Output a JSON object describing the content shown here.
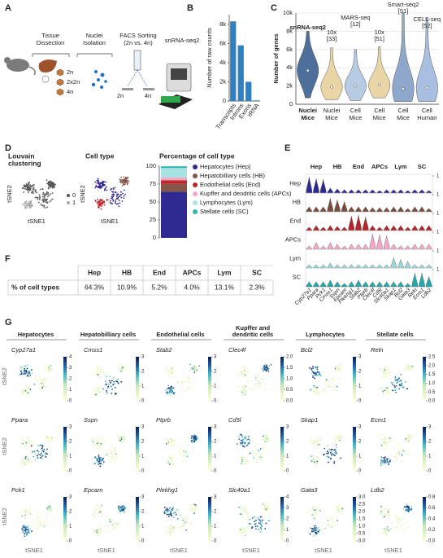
{
  "panel_letters": [
    "A",
    "B",
    "C",
    "D",
    "E",
    "F",
    "G"
  ],
  "A": {
    "steps": [
      [
        "Tissue",
        "Dissection"
      ],
      [
        "Nuclei",
        "Isolation"
      ],
      [
        "FACS Sorting",
        "(2n vs. 4n)"
      ],
      [
        "snRNA-seq2"
      ]
    ],
    "ploidy": [
      "2n",
      "2x2n",
      "4n"
    ],
    "sort_labels": [
      "2n",
      "4n"
    ]
  },
  "D": {
    "louvain_title": [
      "Louvain",
      "clustering"
    ],
    "louvain_legend": [
      "0",
      "1"
    ],
    "celltype_title": "Cell type"
  },
  "F": {
    "header": [
      "Hep",
      "HB",
      "End",
      "APCs",
      "Lym",
      "SC"
    ],
    "row_label": "% of cell types",
    "cells": [
      "64.3%",
      "10.9%",
      "5.2%",
      "4.0%",
      "13.1%",
      "2.3%"
    ]
  },
  "G": {
    "column_titles": [
      [
        "Hepatocytes"
      ],
      [
        "Hepatobilliary cells"
      ],
      [
        "Endothelial cells"
      ],
      [
        "Kupffer and",
        "dendritic cells"
      ],
      [
        "Lymphocytes"
      ],
      [
        "Stellate cells"
      ]
    ],
    "genes": [
      [
        "Cyp27a1",
        "Cmss1",
        "Stab2",
        "Clec4f",
        "Bcl2",
        "Reln"
      ],
      [
        "Ppara",
        "Sspn",
        "Ptprb",
        "Cd5l",
        "Skap1",
        "Ecm1"
      ],
      [
        "Pck1",
        "Epcam",
        "Plekhg1",
        "Slc40a1",
        "Gata3",
        "Ldb2"
      ]
    ],
    "colorbar_ticks": [
      [
        [
          0,
          1,
          2,
          3,
          4
        ],
        [
          0,
          1,
          2,
          3
        ],
        [
          0,
          1,
          2,
          3
        ],
        [
          {
            "value": 0,
            "label": "0.0"
          },
          {
            "value": 0.5,
            "label": "0.5"
          },
          {
            "value": 1,
            "label": "1.0"
          },
          {
            "value": 1.5,
            "label": "1.5"
          },
          {
            "value": 2,
            "label": "2.0"
          }
        ],
        [
          0,
          1,
          2,
          3
        ],
        [
          {
            "value": 0,
            "label": "0.0"
          },
          0.5,
          {
            "value": 1,
            "label": "1.0"
          },
          1.5,
          {
            "value": 2,
            "label": "2.0"
          },
          2.5
        ]
      ],
      [
        [
          0,
          1,
          2,
          3
        ],
        [
          0,
          1,
          2,
          3
        ],
        [
          0,
          1,
          2,
          3
        ],
        [
          0,
          1,
          2,
          3
        ],
        [
          0,
          1,
          2,
          3
        ],
        [
          0,
          1,
          2,
          3
        ]
      ],
      [
        [
          0,
          1,
          2,
          3
        ],
        [
          0,
          1,
          2,
          3
        ],
        [
          0,
          1,
          2,
          3
        ],
        [
          0,
          1,
          2,
          3,
          4
        ],
        [
          {
            "value": 0,
            "label": "0.0"
          },
          0.5,
          {
            "value": 1,
            "label": "1.0"
          },
          1.5,
          {
            "value": 2,
            "label": "2.0"
          },
          2.5,
          {
            "value": 3,
            "label": "3.0"
          }
        ],
        [
          {
            "value": 0,
            "label": "0.0"
          },
          0.2,
          0.4,
          0.6,
          0.8
        ]
      ]
    ]
  },
  "axis_labels": {
    "x": "tSNE1",
    "y": "tSNE2"
  },
  "chart_data": [
    {
      "type": "bar",
      "ylabel": "Number of raw counts",
      "categories": [
        "Transcripts",
        "Introns",
        "Exons",
        "rRNA"
      ],
      "values": [
        8300,
        5800,
        2000,
        60
      ],
      "color": "#2f7fc1",
      "ylim": [
        0,
        9000
      ],
      "yticks": [
        0,
        {
          "value": 2000,
          "label": "2k"
        },
        {
          "value": 4000,
          "label": "4k"
        },
        {
          "value": 6000,
          "label": "6k"
        },
        {
          "value": 8000,
          "label": "8k"
        }
      ]
    },
    {
      "type": "violin",
      "ylabel": "Number of genes",
      "categories": [
        [
          "Nuclei",
          "Mice"
        ],
        [
          "Nuclei",
          "Mice"
        ],
        [
          "Cell",
          "Mice"
        ],
        [
          "Cell",
          "Mice"
        ],
        [
          "Cell",
          "Mice"
        ],
        [
          "Cell",
          "Human"
        ]
      ],
      "methods": [
        [
          "snRNA-seq2"
        ],
        [
          "10x",
          "[33]"
        ],
        [
          "MARS-seq",
          "[12]"
        ],
        [
          "10x",
          "[51]"
        ],
        [
          "Smart-seq2",
          "[51]"
        ],
        [
          "CELL-seq",
          "[52]"
        ]
      ],
      "colors": [
        "#4d6f99",
        "#ead5a6",
        "#b7cbe3",
        "#ead5a6",
        "#8ea8cc",
        "#a9bfe2"
      ],
      "values": [
        3700,
        1900,
        2000,
        2100,
        1700,
        1800
      ],
      "min": [
        700,
        500,
        400,
        700,
        300,
        300
      ],
      "max": [
        8000,
        6200,
        6000,
        6300,
        10000,
        9500
      ],
      "ylim": [
        0,
        10000
      ],
      "grid": true,
      "yticks": [
        0,
        {
          "value": 2000,
          "label": "2k"
        },
        {
          "value": 4000,
          "label": "4k"
        },
        {
          "value": 6000,
          "label": "6k"
        },
        {
          "value": 8000,
          "label": "8k"
        },
        {
          "value": 10000,
          "label": "10k"
        }
      ]
    },
    {
      "type": "stacked_bar",
      "title": "Percentage of cell type",
      "ylim": [
        0,
        100
      ],
      "yticks": [
        0,
        25,
        50,
        75,
        100
      ],
      "series": [
        {
          "name": "Hepatocytes (Hep)",
          "color": "#2e2a92",
          "values": [
            64.3
          ]
        },
        {
          "name": "Hepatobilliary cells (HB)",
          "color": "#85564a",
          "values": [
            10.9
          ]
        },
        {
          "name": "Endothelial cells (End)",
          "color": "#c0272d",
          "values": [
            5.2
          ]
        },
        {
          "name": "Kupffer and dendritic cells (APCs)",
          "color": "#f2a9c8",
          "values": [
            4.0
          ]
        },
        {
          "name": "Lymphocytes (Lym)",
          "color": "#a8e3e3",
          "values": [
            13.1
          ]
        },
        {
          "name": "Stellate cells (SC)",
          "color": "#2cb5b5",
          "values": [
            2.3
          ]
        }
      ]
    },
    {
      "type": "stacked_violin",
      "groups": [
        "Hep",
        "HB",
        "End",
        "APCs",
        "Lym",
        "SC"
      ],
      "rows": [
        "Hep",
        "HB",
        "End",
        "APCs",
        "Lym",
        "SC"
      ],
      "row_colors": [
        "#2e2a92",
        "#7a4e3e",
        "#b5242b",
        "#f2a9c8",
        "#9ad8d6",
        "#2aa8a8"
      ],
      "genes": [
        "Cyp27a1",
        "Ppara",
        "Pck1",
        "Cmss1",
        "Sspn",
        "Epcam",
        "Plekhg1",
        "Stab2",
        "Ptprb",
        "Clec4f",
        "Cd5l",
        "Slc40a1",
        "Skap1",
        "Bcl2",
        "Gata3",
        "Reln",
        "Ecm1",
        "Ldb2"
      ],
      "ylim": [
        0,
        1
      ],
      "yticks": [
        1
      ],
      "values": [
        [
          0.95,
          0.85,
          0.8,
          0.3,
          0.25,
          0.2,
          0.2,
          0.2,
          0.2,
          0.2,
          0.15,
          0.2,
          0.2,
          0.2,
          0.15,
          0.2,
          0.2,
          0.15
        ],
        [
          0.3,
          0.3,
          0.3,
          0.8,
          0.7,
          0.6,
          0.3,
          0.3,
          0.3,
          0.25,
          0.25,
          0.25,
          0.3,
          0.3,
          0.2,
          0.3,
          0.3,
          0.2
        ],
        [
          0.2,
          0.3,
          0.2,
          0.3,
          0.25,
          0.2,
          0.85,
          0.9,
          0.8,
          0.3,
          0.2,
          0.3,
          0.3,
          0.3,
          0.2,
          0.3,
          0.3,
          0.3
        ],
        [
          0.2,
          0.4,
          0.2,
          0.4,
          0.3,
          0.2,
          0.3,
          0.3,
          0.3,
          0.9,
          0.85,
          0.8,
          0.3,
          0.2,
          0.2,
          0.3,
          0.3,
          0.3
        ],
        [
          0.2,
          0.2,
          0.2,
          0.3,
          0.2,
          0.2,
          0.2,
          0.2,
          0.2,
          0.2,
          0.2,
          0.2,
          0.6,
          0.5,
          0.4,
          0.2,
          0.2,
          0.2
        ],
        [
          0.3,
          0.3,
          0.3,
          0.4,
          0.3,
          0.2,
          0.3,
          0.4,
          0.3,
          0.3,
          0.3,
          0.3,
          0.3,
          0.3,
          0.2,
          0.8,
          0.8,
          0.6
        ]
      ]
    }
  ]
}
